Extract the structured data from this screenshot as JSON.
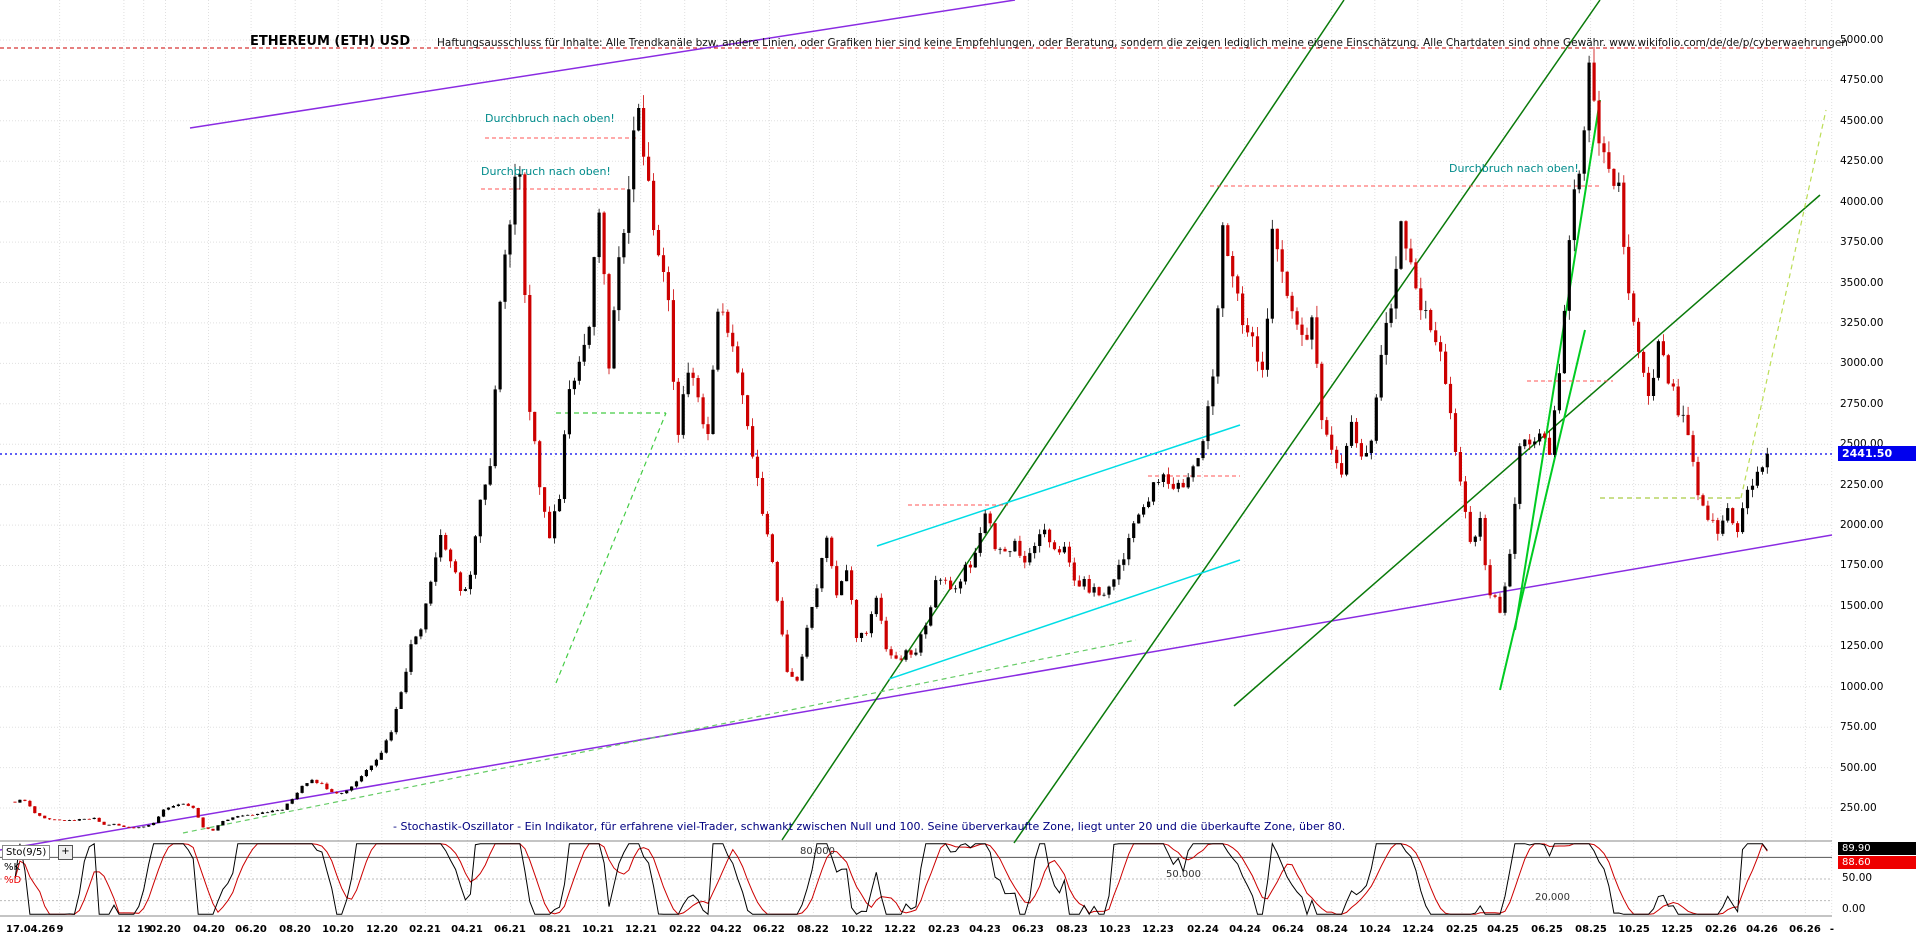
{
  "chart_data": {
    "type": "candlestick",
    "title": "ETHEREUM (ETH) USD",
    "disclaimer": "Haftungsausschluss für Inhalte: Alle Trendkanäle bzw. andere Linien, oder Grafiken hier sind keine Empfehlungen, oder Beratung, sondern die zeigen lediglich meine eigene Einschätzung. Alle Chartdaten sind ohne Gewähr. www.wikifolio.com/de/de/p/cyberwaehrungen",
    "footer_note": "- Stochastik-Oszillator - Ein Indikator, für erfahrene viel-Trader, schwankt zwischen Null und 100. Seine überverkaufte Zone, liegt unter 20 und die überkaufte Zone, über 80.",
    "x_start": "07.2019",
    "x_interval_per_close": "2 weeks",
    "ylim": [
      0,
      5000
    ],
    "y_tick_step": 250,
    "y_tick_labels": [
      "5000.00",
      "4750.00",
      "4500.00",
      "4250.00",
      "4000.00",
      "3750.00",
      "3500.00",
      "3250.00",
      "3000.00",
      "2750.00",
      "2500.00",
      "2250.00",
      "2000.00",
      "1750.00",
      "1500.00",
      "1250.00",
      "1000.00",
      "750.00",
      "500.00",
      "250.00"
    ],
    "x_tick_labels": [
      {
        "text": "17.04.26",
        "t": -1.4
      },
      {
        "text": "9",
        "t": 9
      },
      {
        "text": "12",
        "t": 22
      },
      {
        "text": "19",
        "t": 26
      },
      {
        "text": "02.20",
        "t": 30.4
      },
      {
        "text": "04.20",
        "t": 39.1
      },
      {
        "text": "06.20",
        "t": 47.7
      },
      {
        "text": "08.20",
        "t": 56.6
      },
      {
        "text": "10.20",
        "t": 65.3
      },
      {
        "text": "12.20",
        "t": 74.1
      },
      {
        "text": "02.21",
        "t": 82.9
      },
      {
        "text": "04.21",
        "t": 91.4
      },
      {
        "text": "06.21",
        "t": 100.1
      },
      {
        "text": "08.21",
        "t": 109.0
      },
      {
        "text": "10.21",
        "t": 117.7
      },
      {
        "text": "12.21",
        "t": 126.4
      },
      {
        "text": "02.22",
        "t": 135.3
      },
      {
        "text": "04.22",
        "t": 143.7
      },
      {
        "text": "06.22",
        "t": 152.4
      },
      {
        "text": "08.22",
        "t": 161.3
      },
      {
        "text": "10.22",
        "t": 170.0
      },
      {
        "text": "12.22",
        "t": 178.7
      },
      {
        "text": "02.23",
        "t": 187.6
      },
      {
        "text": "04.23",
        "t": 196.0
      },
      {
        "text": "06.23",
        "t": 204.7
      },
      {
        "text": "08.23",
        "t": 213.6
      },
      {
        "text": "10.23",
        "t": 222.3
      },
      {
        "text": "12.23",
        "t": 231.0
      },
      {
        "text": "02.24",
        "t": 239.9
      },
      {
        "text": "04.24",
        "t": 248.4
      },
      {
        "text": "06.24",
        "t": 257.1
      },
      {
        "text": "08.24",
        "t": 266.0
      },
      {
        "text": "10.24",
        "t": 274.7
      },
      {
        "text": "12.24",
        "t": 283.4
      },
      {
        "text": "02.25",
        "t": 292.3
      },
      {
        "text": "04.25",
        "t": 300.7
      },
      {
        "text": "06.25",
        "t": 309.4
      },
      {
        "text": "08.25",
        "t": 318.3
      },
      {
        "text": "10.25",
        "t": 327.0
      },
      {
        "text": "12.25",
        "t": 335.7
      },
      {
        "text": "02.26",
        "t": 344.6
      },
      {
        "text": "04.26",
        "t": 353.0
      },
      {
        "text": "06.26",
        "t": 361.7
      },
      {
        "text": "-",
        "t": 367.0
      }
    ],
    "series_closes_biweekly": [
      290,
      300,
      220,
      185,
      180,
      170,
      175,
      180,
      185,
      145,
      150,
      132,
      128,
      135,
      160,
      235,
      265,
      280,
      245,
      130,
      110,
      170,
      190,
      205,
      210,
      225,
      230,
      240,
      305,
      390,
      430,
      395,
      355,
      340,
      385,
      450,
      520,
      600,
      730,
      980,
      1250,
      1380,
      1680,
      1940,
      1780,
      1570,
      1690,
      2130,
      2320,
      3450,
      3900,
      4250,
      2700,
      2250,
      1900,
      2190,
      2900,
      3010,
      3230,
      3950,
      3000,
      3580,
      4170,
      4620,
      4050,
      3680,
      3350,
      2550,
      2990,
      2750,
      2570,
      3280,
      3250,
      2900,
      2600,
      2250,
      1980,
      1530,
      1070,
      1050,
      1340,
      1640,
      1950,
      1550,
      1720,
      1330,
      1310,
      1550,
      1250,
      1150,
      1200,
      1200,
      1410,
      1630,
      1660,
      1600,
      1750,
      1790,
      2090,
      1880,
      1830,
      1900,
      1740,
      1890,
      1930,
      1870,
      1840,
      1650,
      1630,
      1590,
      1560,
      1680,
      1790,
      2050,
      2080,
      2230,
      2290,
      2240,
      2260,
      2350,
      2500,
      2920,
      3880,
      3500,
      3230,
      3130,
      2940,
      3750,
      3510,
      3370,
      3160,
      3270,
      2600,
      2520,
      2300,
      2650,
      2420,
      2520,
      3060,
      3350,
      3900,
      3650,
      3350,
      3200,
      3110,
      2670,
      2230,
      1890,
      2000,
      1580,
      1480,
      1790,
      2480,
      2530,
      2540,
      2440,
      2950,
      3740,
      4250,
      4780,
      4300,
      4150,
      4100,
      3400,
      3050,
      2750,
      3100,
      2900,
      2700,
      2550,
      2150,
      2050,
      1950,
      2100,
      1980,
      2200,
      2300,
      2441.5
    ],
    "current_price": 2441.5,
    "current_price_label": "2441.50",
    "annotations": [
      {
        "text": "Durchbruch nach oben!",
        "x": 485,
        "y": 112
      },
      {
        "text": "Durchbruch nach oben!",
        "x": 481,
        "y": 165
      },
      {
        "text": "Durchbruch nach oben!",
        "x": 1449,
        "y": 162
      }
    ],
    "stochastic": {
      "indicator_label": "Sto(9/5)",
      "expand_button": "+",
      "k_label": "%K",
      "d_label": "%D",
      "k_value_label": "89.90",
      "d_value_label": "88.60",
      "level_labels": [
        {
          "text": "80.000",
          "v": 80,
          "x": 800
        },
        {
          "text": "50.000",
          "v": 50,
          "x": 1166
        },
        {
          "text": "20.000",
          "v": 20,
          "x": 1535
        }
      ],
      "right_axis_labels": [
        {
          "text": "50.00",
          "v": 50
        },
        {
          "text": "0.00",
          "v": 0
        }
      ]
    },
    "trend_lines": [
      [
        0,
        454,
        1832,
        454,
        "#0000ee",
        1.2,
        "2,3"
      ],
      [
        0,
        48,
        1832,
        48,
        "#cc0000",
        1,
        "4,3"
      ],
      [
        190,
        128,
        1015,
        0,
        "#8a2be2",
        1.5,
        ""
      ],
      [
        0,
        850,
        1832,
        535,
        "#8a2be2",
        1.5,
        ""
      ],
      [
        782,
        840,
        1344,
        0,
        "#0a7a0a",
        1.5,
        ""
      ],
      [
        1014,
        843,
        1600,
        0,
        "#0a7a0a",
        1.5,
        ""
      ],
      [
        1234,
        706,
        1820,
        195,
        "#0a7a0a",
        1.5,
        ""
      ],
      [
        1515,
        630,
        1600,
        100,
        "#00cc22",
        2,
        ""
      ],
      [
        1500,
        690,
        1585,
        330,
        "#00cc22",
        2,
        ""
      ],
      [
        877,
        546,
        1240,
        425,
        "#00dde5",
        1.5,
        ""
      ],
      [
        889,
        679,
        1240,
        560,
        "#00dde5",
        1.5,
        ""
      ],
      [
        556,
        413,
        666,
        413,
        "#44cc44",
        1.2,
        "5,4"
      ],
      [
        556,
        683,
        666,
        413,
        "#44cc44",
        1.2,
        "5,4"
      ],
      [
        183,
        833,
        1136,
        640,
        "#66cc66",
        1.2,
        "5,4"
      ],
      [
        1600,
        498,
        1741,
        498,
        "#aacc44",
        1.2,
        "5,4"
      ],
      [
        1741,
        498,
        1826,
        110,
        "#bbdd55",
        1.2,
        "5,4"
      ],
      [
        485,
        138,
        638,
        138,
        "#ff5555",
        1,
        "4,3"
      ],
      [
        481,
        189,
        626,
        189,
        "#ff5555",
        1,
        "4,3"
      ],
      [
        1210,
        186,
        1600,
        186,
        "#ff5555",
        1,
        "4,3"
      ],
      [
        1527,
        381,
        1613,
        381,
        "#ff5555",
        1,
        "4,3"
      ],
      [
        1148,
        476,
        1240,
        476,
        "#ff5555",
        1,
        "4,3"
      ],
      [
        908,
        505,
        1008,
        505,
        "#ff5555",
        1,
        "4,3"
      ]
    ],
    "colors": {
      "up_candle": "#000000",
      "down_candle": "#cc0000",
      "current_price_line": "#0000ee",
      "price_badge_bg": "#0000ee",
      "k_badge_bg": "#000000",
      "d_badge_bg": "#ee0000",
      "annotation": "#008b8b",
      "footer_note": "#000080",
      "grid": "#e0e0e0"
    }
  }
}
